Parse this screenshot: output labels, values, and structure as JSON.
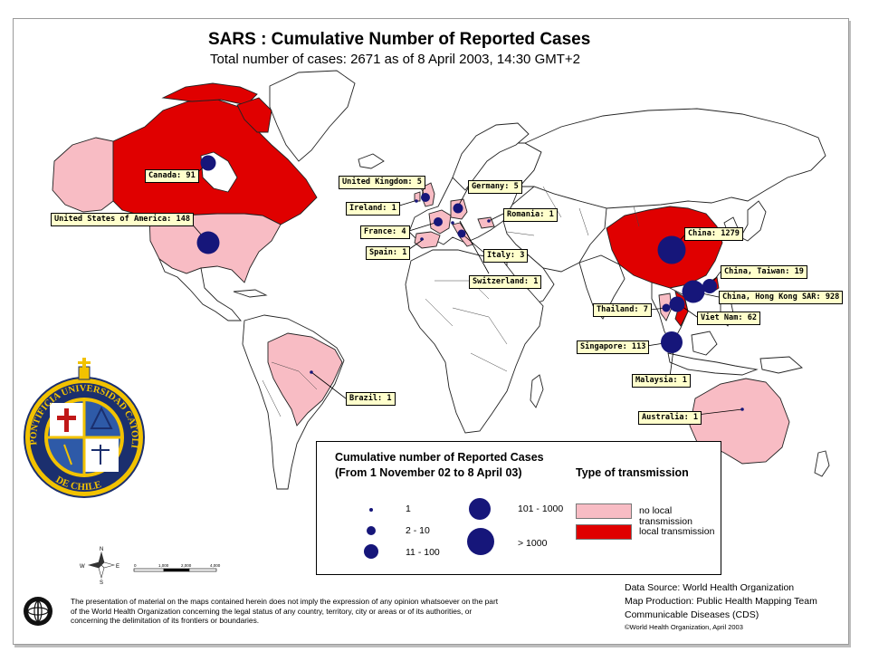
{
  "title": "SARS : Cumulative Number of Reported Cases",
  "subtitle": "Total number of cases: 2671 as of 8 April 2003, 14:30 GMT+2",
  "countries": [
    {
      "label": "Canada: 91",
      "cases": 91
    },
    {
      "label": "United States of America: 148",
      "cases": 148
    },
    {
      "label": "United Kingdom: 5",
      "cases": 5
    },
    {
      "label": "Ireland: 1",
      "cases": 1
    },
    {
      "label": "France: 4",
      "cases": 4
    },
    {
      "label": "Spain: 1",
      "cases": 1
    },
    {
      "label": "Germany: 5",
      "cases": 5
    },
    {
      "label": "Romania: 1",
      "cases": 1
    },
    {
      "label": "Italy: 3",
      "cases": 3
    },
    {
      "label": "Switzerland: 1",
      "cases": 1
    },
    {
      "label": "China: 1279",
      "cases": 1279
    },
    {
      "label": "China, Taiwan: 19",
      "cases": 19
    },
    {
      "label": "China, Hong Kong SAR: 928",
      "cases": 928
    },
    {
      "label": "Thailand: 7",
      "cases": 7
    },
    {
      "label": "Viet Nam: 62",
      "cases": 62
    },
    {
      "label": "Singapore: 113",
      "cases": 113
    },
    {
      "label": "Malaysia: 1",
      "cases": 1
    },
    {
      "label": "Australia: 1",
      "cases": 1
    },
    {
      "label": "Brazil: 1",
      "cases": 1
    }
  ],
  "legend": {
    "heading1": "Cumulative number of Reported Cases",
    "heading2": "(From 1 November 02 to 8 April 03)",
    "type_heading": "Type of transmission",
    "sizes": [
      "1",
      "2 - 10",
      "11 - 100",
      "101 - 1000",
      "> 1000"
    ],
    "no_local": "no local transmission",
    "local": "local transmission"
  },
  "colors": {
    "local_transmission": "#e00000",
    "no_local_transmission": "#f8bcc4",
    "case_dot": "#16167a",
    "label_bg": "#ffffcc"
  },
  "credits": {
    "line1": "Data Source: World Health Organization",
    "line2": "Map Production: Public Health Mapping Team",
    "line3": "Communicable Diseases (CDS)",
    "line4": "©World Health Organization, April 2003"
  },
  "disclaimer": "The presentation of material on the maps contained herein does not imply the expression of any opinion whatsoever on the part of the World Health Organization concerning the legal status of any country, territory, city or areas or of its authorities, or concerning the delimitation of its frontiers or boundaries.",
  "logo_text": "PONTIFICIA UNIVERSIDAD CATOLICA DE CHILE",
  "scale_bar": {
    "ticks": [
      "0",
      "1,000",
      "2,000",
      "4,000"
    ]
  },
  "compass": [
    "N",
    "E",
    "S",
    "W"
  ],
  "icons": [
    "who-emblem-icon",
    "university-seal-icon",
    "compass-rose-icon"
  ]
}
